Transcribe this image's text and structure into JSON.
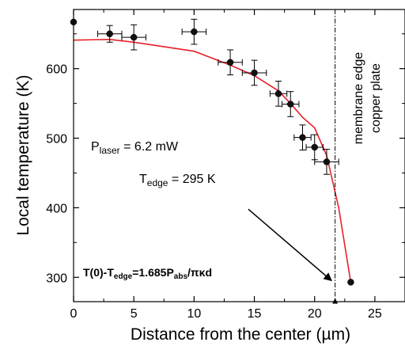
{
  "chart_data": {
    "type": "scatter",
    "xlabel": "Distance from the center (µm)",
    "ylabel": "Local temperature (K)",
    "xlim": [
      0,
      27.5
    ],
    "ylim": [
      265,
      685
    ],
    "xticks": [
      0,
      5,
      10,
      15,
      20,
      25
    ],
    "yticks": [
      300,
      400,
      500,
      600
    ],
    "grid": false,
    "series": [
      {
        "kind": "points_with_errorbars",
        "color": "#000000",
        "points": [
          {
            "x": 0,
            "y": 667,
            "xerr": 0,
            "yerr": 0
          },
          {
            "x": 3,
            "y": 650,
            "xerr": 1,
            "yerr": 12
          },
          {
            "x": 5,
            "y": 645,
            "xerr": 1,
            "yerr": 18
          },
          {
            "x": 10,
            "y": 653,
            "xerr": 1,
            "yerr": 18
          },
          {
            "x": 13,
            "y": 609,
            "xerr": 1,
            "yerr": 18
          },
          {
            "x": 15,
            "y": 594,
            "xerr": 1,
            "yerr": 18
          },
          {
            "x": 17,
            "y": 564,
            "xerr": 0.7,
            "yerr": 18
          },
          {
            "x": 18,
            "y": 549,
            "xerr": 0.7,
            "yerr": 18
          },
          {
            "x": 19,
            "y": 501,
            "xerr": 0.7,
            "yerr": 18
          },
          {
            "x": 20,
            "y": 487,
            "xerr": 0.7,
            "yerr": 18
          },
          {
            "x": 21,
            "y": 466,
            "xerr": 1,
            "yerr": 18
          },
          {
            "x": 23,
            "y": 293,
            "xerr": 0,
            "yerr": 0
          }
        ]
      },
      {
        "kind": "line",
        "color": "#e8202a",
        "x": [
          0,
          3,
          5,
          10,
          13,
          15,
          17,
          18,
          19,
          20,
          21,
          22,
          23
        ],
        "y": [
          641,
          642,
          638,
          625,
          605,
          590,
          568,
          550,
          530,
          515,
          475,
          400,
          293
        ]
      }
    ],
    "vertical_line": {
      "x": 21.7,
      "style": "dash-dot"
    },
    "arrow": {
      "from": [
        20.4,
        290
      ],
      "to": [
        21.65,
        275
      ]
    },
    "pointer_arrow": {
      "from": [
        14.5,
        398
      ],
      "to": [
        21.4,
        293
      ]
    },
    "annotations": {
      "plaser": {
        "main": "P",
        "sub": "laser",
        "rest": " = 6.2 mW"
      },
      "tedge": {
        "main": "T",
        "sub": "edge",
        "rest": " = 295 K"
      },
      "formula": {
        "pre": "T(0)-T",
        "sub": "edge",
        "post": "=1.685P",
        "sub2": "abs",
        "post2": "/πκd"
      },
      "vertical_text_1": "membrane edge",
      "vertical_text_2": "copper plate"
    }
  }
}
